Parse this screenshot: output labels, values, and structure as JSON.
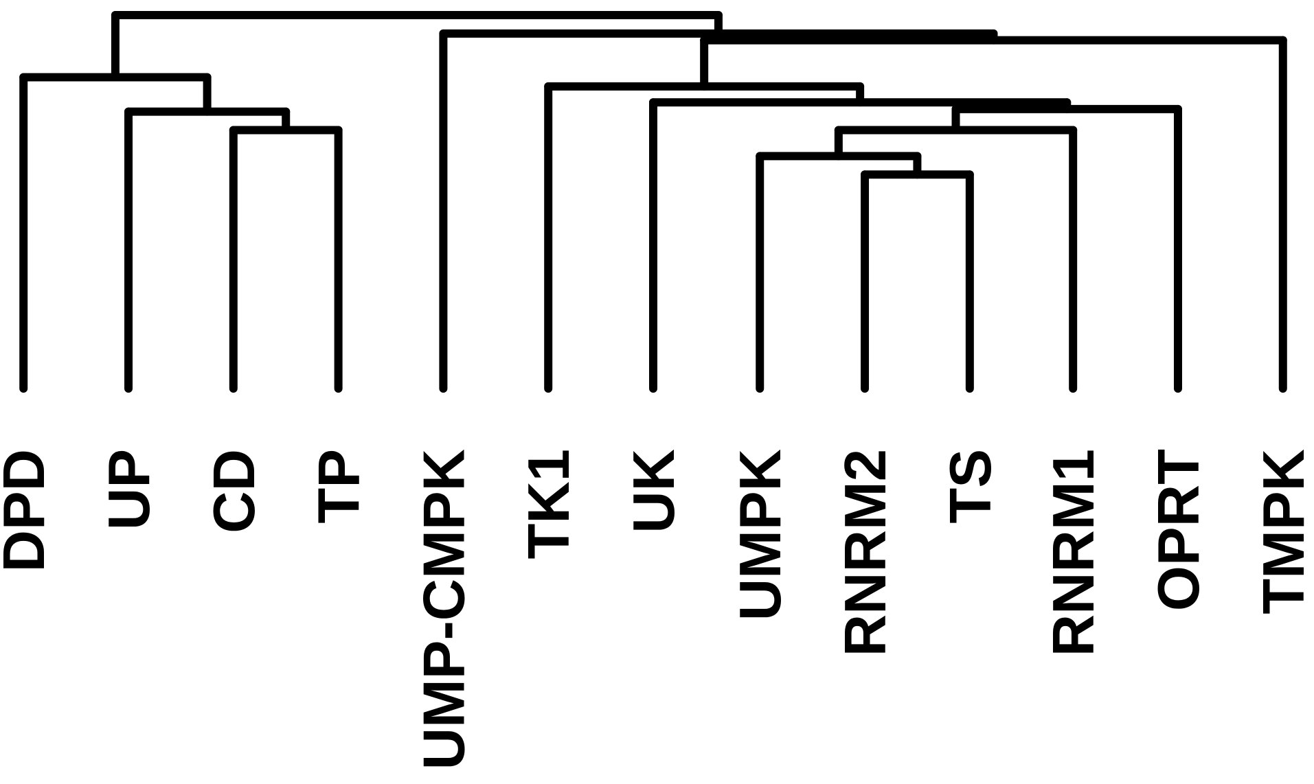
{
  "leaves": [
    {
      "label": "DPD"
    },
    {
      "label": "UP"
    },
    {
      "label": "CD"
    },
    {
      "label": "TP"
    },
    {
      "label": "UMP-CMPK"
    },
    {
      "label": "TK1"
    },
    {
      "label": "UK"
    },
    {
      "label": "UMPK"
    },
    {
      "label": "RNRM2"
    },
    {
      "label": "TS"
    },
    {
      "label": "RNRM1"
    },
    {
      "label": "OPRT"
    },
    {
      "label": "TMPK"
    }
  ]
}
